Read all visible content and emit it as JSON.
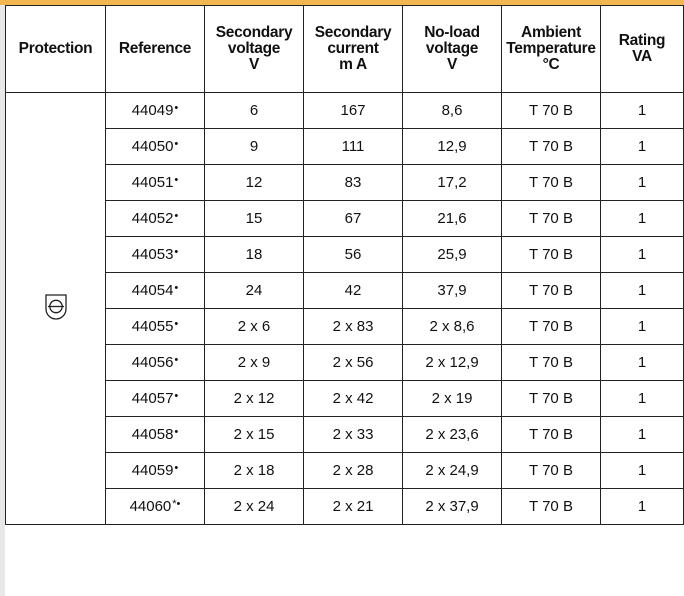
{
  "header": {
    "protection": "Protection",
    "reference": "Reference",
    "secondary_voltage": [
      "Secondary",
      "voltage",
      "V"
    ],
    "secondary_current": [
      "Secondary",
      "current",
      "m A"
    ],
    "noload_voltage": [
      "No-load",
      "voltage",
      "V"
    ],
    "ambient_temperature": [
      "Ambient",
      "Temperature",
      "°C"
    ],
    "rating": [
      "Rating",
      "VA"
    ]
  },
  "protection_icon": "short-circuit-proof-transformer-icon",
  "rows": [
    {
      "ref": "44049",
      "mark": "•",
      "sec_v": "6",
      "sec_i": "167",
      "noload_v": "8,6",
      "temp": "T 70 B",
      "rating": "1"
    },
    {
      "ref": "44050",
      "mark": "•",
      "sec_v": "9",
      "sec_i": "111",
      "noload_v": "12,9",
      "temp": "T 70 B",
      "rating": "1"
    },
    {
      "ref": "44051",
      "mark": "•",
      "sec_v": "12",
      "sec_i": "83",
      "noload_v": "17,2",
      "temp": "T 70 B",
      "rating": "1"
    },
    {
      "ref": "44052",
      "mark": "•",
      "sec_v": "15",
      "sec_i": "67",
      "noload_v": "21,6",
      "temp": "T 70 B",
      "rating": "1"
    },
    {
      "ref": "44053",
      "mark": "•",
      "sec_v": "18",
      "sec_i": "56",
      "noload_v": "25,9",
      "temp": "T 70 B",
      "rating": "1"
    },
    {
      "ref": "44054",
      "mark": "•",
      "sec_v": "24",
      "sec_i": "42",
      "noload_v": "37,9",
      "temp": "T 70 B",
      "rating": "1"
    },
    {
      "ref": "44055",
      "mark": "•",
      "sec_v": "2 x 6",
      "sec_i": "2 x 83",
      "noload_v": "2 x 8,6",
      "temp": "T 70 B",
      "rating": "1"
    },
    {
      "ref": "44056",
      "mark": "•",
      "sec_v": "2 x 9",
      "sec_i": "2 x 56",
      "noload_v": "2 x 12,9",
      "temp": "T 70 B",
      "rating": "1"
    },
    {
      "ref": "44057",
      "mark": "•",
      "sec_v": "2 x 12",
      "sec_i": "2 x 42",
      "noload_v": "2 x 19",
      "temp": "T 70 B",
      "rating": "1"
    },
    {
      "ref": "44058",
      "mark": "•",
      "sec_v": "2 x 15",
      "sec_i": "2 x 33",
      "noload_v": "2 x 23,6",
      "temp": "T 70 B",
      "rating": "1"
    },
    {
      "ref": "44059",
      "mark": "•",
      "sec_v": "2 x 18",
      "sec_i": "2 x 28",
      "noload_v": "2 x 24,9",
      "temp": "T 70 B",
      "rating": "1"
    },
    {
      "ref": "44060",
      "mark": "*•",
      "sec_v": "2 x 24",
      "sec_i": "2 x 21",
      "noload_v": "2 x 37,9",
      "temp": "T 70 B",
      "rating": "1"
    }
  ]
}
